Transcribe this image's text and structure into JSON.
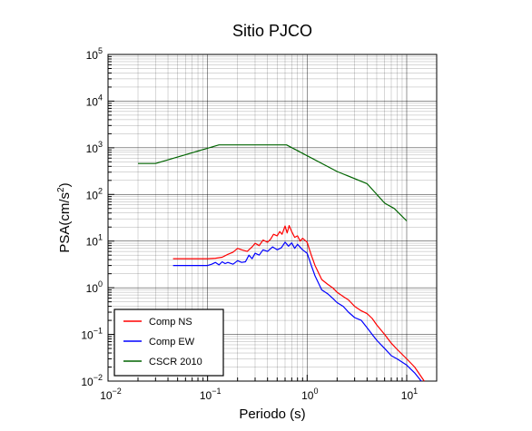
{
  "chart_data": {
    "type": "line",
    "title": "Sitio PJCO",
    "xlabel": "Periodo (s)",
    "ylabel": "PSA(cm/s²)",
    "ylabel_parts": {
      "base": "PSA(cm/s",
      "sup": "2",
      "close": ")"
    },
    "x_scale": "log",
    "y_scale": "log",
    "xlim": [
      0.01,
      20
    ],
    "ylim": [
      0.01,
      100000
    ],
    "x_ticks": [
      {
        "value": 0.01,
        "base": "10",
        "exp": "−2"
      },
      {
        "value": 0.1,
        "base": "10",
        "exp": "−1"
      },
      {
        "value": 1,
        "base": "10",
        "exp": "0"
      },
      {
        "value": 10,
        "base": "10",
        "exp": "1"
      }
    ],
    "y_ticks": [
      {
        "value": 0.01,
        "base": "10",
        "exp": "−2"
      },
      {
        "value": 0.1,
        "base": "10",
        "exp": "−1"
      },
      {
        "value": 1,
        "base": "10",
        "exp": "0"
      },
      {
        "value": 10,
        "base": "10",
        "exp": "1"
      },
      {
        "value": 100,
        "base": "10",
        "exp": "2"
      },
      {
        "value": 1000,
        "base": "10",
        "exp": "3"
      },
      {
        "value": 10000,
        "base": "10",
        "exp": "4"
      },
      {
        "value": 100000,
        "base": "10",
        "exp": "5"
      }
    ],
    "grid": true,
    "legend_position": "bottom-left",
    "series": [
      {
        "name": "Comp NS",
        "color": "#ff0000",
        "x": [
          0.045,
          0.06,
          0.08,
          0.1,
          0.12,
          0.14,
          0.16,
          0.18,
          0.2,
          0.22,
          0.25,
          0.28,
          0.3,
          0.33,
          0.36,
          0.4,
          0.43,
          0.46,
          0.5,
          0.53,
          0.56,
          0.6,
          0.63,
          0.66,
          0.7,
          0.75,
          0.8,
          0.85,
          0.9,
          1.0,
          1.1,
          1.2,
          1.4,
          1.6,
          1.8,
          2.0,
          2.3,
          2.6,
          3.0,
          3.5,
          4.0,
          4.5,
          5.0,
          6.0,
          7.0,
          8.0,
          10.0,
          12.0,
          15.0
        ],
        "values": [
          4.2,
          4.2,
          4.2,
          4.2,
          4.3,
          4.5,
          5.2,
          5.8,
          7.0,
          6.5,
          6.0,
          7.5,
          9.0,
          8.0,
          10.5,
          9.5,
          11.0,
          14.0,
          13.0,
          16.0,
          14.0,
          21.0,
          15.0,
          21.5,
          16.0,
          12.0,
          13.0,
          10.0,
          11.5,
          9.5,
          5.0,
          3.0,
          1.5,
          1.2,
          1.0,
          0.8,
          0.65,
          0.55,
          0.4,
          0.32,
          0.28,
          0.22,
          0.16,
          0.1,
          0.065,
          0.048,
          0.03,
          0.02,
          0.01
        ]
      },
      {
        "name": "Comp EW",
        "color": "#0000ff",
        "x": [
          0.045,
          0.06,
          0.08,
          0.1,
          0.11,
          0.12,
          0.13,
          0.14,
          0.15,
          0.16,
          0.18,
          0.2,
          0.22,
          0.24,
          0.26,
          0.28,
          0.3,
          0.33,
          0.36,
          0.4,
          0.45,
          0.5,
          0.55,
          0.6,
          0.65,
          0.7,
          0.75,
          0.8,
          0.9,
          1.0,
          1.1,
          1.2,
          1.4,
          1.6,
          1.8,
          2.0,
          2.3,
          2.6,
          3.0,
          3.5,
          4.0,
          4.5,
          5.0,
          6.0,
          7.0,
          8.0,
          10.0,
          12.0,
          14.0
        ],
        "values": [
          3.0,
          3.0,
          3.0,
          3.0,
          3.2,
          3.5,
          3.1,
          3.6,
          3.3,
          3.5,
          3.2,
          3.8,
          3.5,
          3.6,
          5.0,
          4.2,
          5.5,
          5.0,
          6.5,
          6.0,
          7.5,
          6.5,
          7.2,
          9.5,
          7.8,
          9.2,
          7.0,
          8.5,
          6.5,
          5.5,
          3.0,
          1.8,
          0.9,
          0.75,
          0.6,
          0.48,
          0.4,
          0.3,
          0.23,
          0.2,
          0.14,
          0.1,
          0.075,
          0.05,
          0.035,
          0.03,
          0.022,
          0.015,
          0.01
        ]
      },
      {
        "name": "CSCR 2010",
        "color": "#006400",
        "x": [
          0.02,
          0.03,
          0.13,
          0.62,
          2.0,
          4.0,
          6.0,
          7.5,
          10.0
        ],
        "values": [
          460,
          460,
          1150,
          1150,
          310,
          170,
          65,
          50,
          27
        ]
      }
    ]
  }
}
